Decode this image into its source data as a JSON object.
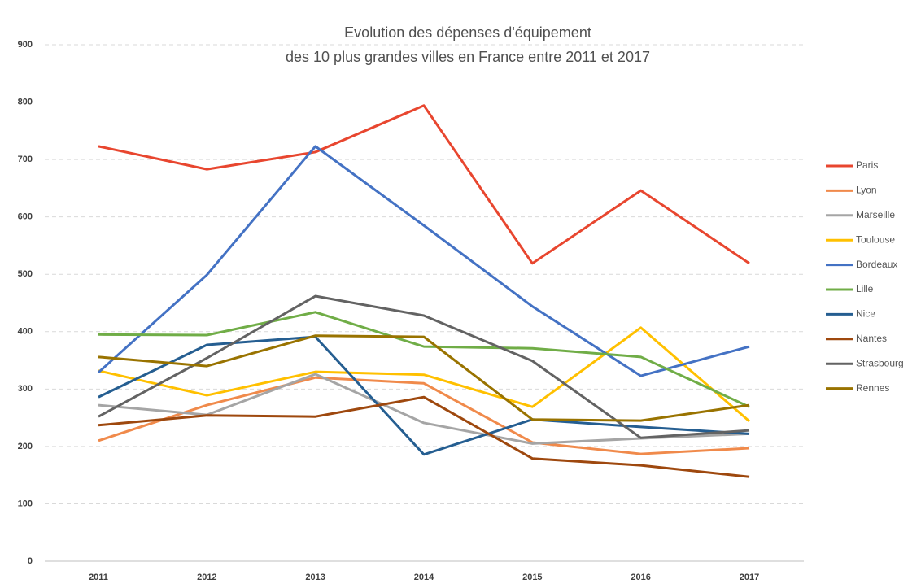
{
  "chart_data": {
    "type": "line",
    "title": [
      "Evolution des dépenses d'équipement",
      "des 10 plus grandes villes en France entre 2011 et 2017"
    ],
    "categories": [
      "2011",
      "2012",
      "2013",
      "2014",
      "2015",
      "2016",
      "2017"
    ],
    "ylim": [
      0,
      900
    ],
    "yticks": [
      0,
      100,
      200,
      300,
      400,
      500,
      600,
      700,
      800,
      900
    ],
    "grid": true,
    "legend": "right",
    "series": [
      {
        "name": "Paris",
        "color": "#e8462f",
        "values": [
          723,
          683,
          713,
          794,
          519,
          646,
          519
        ]
      },
      {
        "name": "Lyon",
        "color": "#f08a4b",
        "values": [
          210,
          272,
          320,
          310,
          207,
          187,
          197
        ]
      },
      {
        "name": "Marseille",
        "color": "#a5a5a5",
        "values": [
          272,
          255,
          326,
          241,
          205,
          214,
          222
        ]
      },
      {
        "name": "Toulouse",
        "color": "#ffc000",
        "values": [
          332,
          289,
          330,
          325,
          269,
          407,
          244
        ]
      },
      {
        "name": "Bordeaux",
        "color": "#4472c4",
        "values": [
          329,
          499,
          723,
          585,
          444,
          323,
          374
        ]
      },
      {
        "name": "Lille",
        "color": "#70ad47",
        "values": [
          395,
          394,
          434,
          374,
          371,
          356,
          269
        ]
      },
      {
        "name": "Nice",
        "color": "#255e91",
        "values": [
          286,
          377,
          391,
          186,
          247,
          234,
          222
        ]
      },
      {
        "name": "Nantes",
        "color": "#9e480e",
        "values": [
          237,
          254,
          252,
          286,
          179,
          167,
          147
        ]
      },
      {
        "name": "Strasbourg",
        "color": "#636363",
        "values": [
          252,
          354,
          462,
          428,
          349,
          215,
          228
        ]
      },
      {
        "name": "Rennes",
        "color": "#997300",
        "values": [
          356,
          340,
          393,
          391,
          247,
          245,
          272
        ]
      }
    ]
  }
}
